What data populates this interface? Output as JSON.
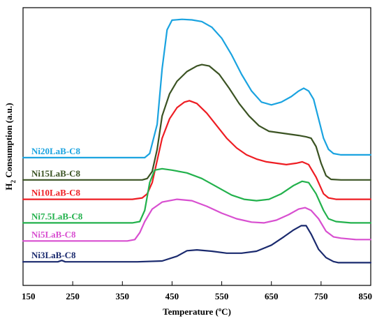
{
  "chart_data": {
    "type": "line",
    "title": "",
    "xlabel": "Temperature (ºC)",
    "ylabel_main": "H",
    "ylabel_sub": "2",
    "ylabel_rest": " Consumption (a.u.)",
    "xlim": [
      150,
      850
    ],
    "xticks": [
      150,
      250,
      350,
      450,
      550,
      650,
      750,
      850
    ],
    "tick_labels": [
      "150",
      "250",
      "350",
      "450",
      "550",
      "650",
      "750",
      "850"
    ],
    "ylim": [
      0,
      100
    ],
    "grid": false,
    "series": [
      {
        "name": "Ni20LaB-C8",
        "color": "#1aa3e0",
        "points": [
          [
            150,
            46
          ],
          [
            250,
            46
          ],
          [
            350,
            46
          ],
          [
            395,
            46
          ],
          [
            405,
            47.5
          ],
          [
            420,
            58
          ],
          [
            430,
            78
          ],
          [
            440,
            92
          ],
          [
            450,
            95.5
          ],
          [
            470,
            95.8
          ],
          [
            490,
            95.6
          ],
          [
            510,
            95
          ],
          [
            530,
            93
          ],
          [
            550,
            89
          ],
          [
            570,
            83
          ],
          [
            590,
            76
          ],
          [
            610,
            70
          ],
          [
            630,
            66
          ],
          [
            650,
            65
          ],
          [
            670,
            66
          ],
          [
            690,
            68
          ],
          [
            705,
            70
          ],
          [
            715,
            71
          ],
          [
            725,
            70
          ],
          [
            735,
            67
          ],
          [
            745,
            60
          ],
          [
            755,
            53
          ],
          [
            765,
            49
          ],
          [
            775,
            47.5
          ],
          [
            790,
            47
          ],
          [
            820,
            47
          ],
          [
            850,
            47
          ]
        ]
      },
      {
        "name": "Ni15LaB-C8",
        "color": "#3b5323",
        "points": [
          [
            150,
            38
          ],
          [
            300,
            38
          ],
          [
            390,
            38
          ],
          [
            400,
            38.5
          ],
          [
            410,
            41
          ],
          [
            420,
            49
          ],
          [
            430,
            61
          ],
          [
            445,
            69
          ],
          [
            460,
            73.5
          ],
          [
            480,
            77
          ],
          [
            500,
            79
          ],
          [
            510,
            79.5
          ],
          [
            525,
            79
          ],
          [
            545,
            76
          ],
          [
            565,
            71
          ],
          [
            585,
            65.5
          ],
          [
            605,
            61
          ],
          [
            625,
            57.5
          ],
          [
            645,
            55.5
          ],
          [
            665,
            55
          ],
          [
            685,
            54.5
          ],
          [
            705,
            54
          ],
          [
            720,
            53.5
          ],
          [
            730,
            53
          ],
          [
            740,
            50
          ],
          [
            750,
            44
          ],
          [
            760,
            39.5
          ],
          [
            770,
            38.2
          ],
          [
            790,
            38
          ],
          [
            820,
            38
          ],
          [
            850,
            38
          ]
        ]
      },
      {
        "name": "Ni10LaB-C8",
        "color": "#ee1d23",
        "points": [
          [
            150,
            31
          ],
          [
            300,
            31
          ],
          [
            370,
            31
          ],
          [
            390,
            31.5
          ],
          [
            400,
            33
          ],
          [
            410,
            37
          ],
          [
            420,
            45
          ],
          [
            430,
            53
          ],
          [
            445,
            60
          ],
          [
            460,
            64
          ],
          [
            475,
            66
          ],
          [
            485,
            66.5
          ],
          [
            500,
            65.5
          ],
          [
            520,
            62
          ],
          [
            540,
            57.5
          ],
          [
            560,
            53
          ],
          [
            580,
            49.5
          ],
          [
            600,
            47
          ],
          [
            620,
            45.5
          ],
          [
            640,
            44.5
          ],
          [
            660,
            44
          ],
          [
            680,
            43.5
          ],
          [
            700,
            44
          ],
          [
            712,
            44.5
          ],
          [
            725,
            43.5
          ],
          [
            740,
            39
          ],
          [
            755,
            33
          ],
          [
            765,
            31.5
          ],
          [
            780,
            31
          ],
          [
            820,
            31
          ],
          [
            850,
            31
          ]
        ]
      },
      {
        "name": "Ni7.5LaB-C8",
        "color": "#22b14c",
        "points": [
          [
            150,
            22.5
          ],
          [
            300,
            22.5
          ],
          [
            370,
            22.5
          ],
          [
            385,
            23
          ],
          [
            395,
            27
          ],
          [
            405,
            37
          ],
          [
            415,
            41.5
          ],
          [
            430,
            42
          ],
          [
            450,
            41.5
          ],
          [
            480,
            40.5
          ],
          [
            510,
            38.5
          ],
          [
            540,
            35.5
          ],
          [
            570,
            32.5
          ],
          [
            595,
            31
          ],
          [
            620,
            30.5
          ],
          [
            645,
            31
          ],
          [
            670,
            33
          ],
          [
            695,
            36
          ],
          [
            712,
            37.5
          ],
          [
            725,
            37
          ],
          [
            740,
            33
          ],
          [
            755,
            27
          ],
          [
            765,
            24
          ],
          [
            780,
            23
          ],
          [
            810,
            22.5
          ],
          [
            850,
            22.5
          ]
        ]
      },
      {
        "name": "Ni5LaB-C8",
        "color": "#d84fd0",
        "points": [
          [
            150,
            16
          ],
          [
            300,
            16
          ],
          [
            360,
            16
          ],
          [
            375,
            16.5
          ],
          [
            385,
            19
          ],
          [
            395,
            23
          ],
          [
            410,
            27.5
          ],
          [
            430,
            30
          ],
          [
            460,
            31
          ],
          [
            490,
            30.5
          ],
          [
            520,
            28.5
          ],
          [
            550,
            26
          ],
          [
            580,
            24
          ],
          [
            610,
            22.8
          ],
          [
            635,
            22.5
          ],
          [
            660,
            23.5
          ],
          [
            685,
            25.5
          ],
          [
            705,
            27.5
          ],
          [
            718,
            28
          ],
          [
            730,
            27
          ],
          [
            745,
            24
          ],
          [
            760,
            19.5
          ],
          [
            775,
            17.5
          ],
          [
            790,
            17
          ],
          [
            820,
            16.5
          ],
          [
            850,
            16.5
          ]
        ]
      },
      {
        "name": "Ni3LaB-C8",
        "color": "#1a2a6e",
        "points": [
          [
            150,
            8.5
          ],
          [
            220,
            8.5
          ],
          [
            228,
            9
          ],
          [
            235,
            8.5
          ],
          [
            300,
            8.5
          ],
          [
            380,
            8.5
          ],
          [
            430,
            8.8
          ],
          [
            460,
            10.5
          ],
          [
            480,
            12.5
          ],
          [
            500,
            12.8
          ],
          [
            530,
            12.3
          ],
          [
            560,
            11.6
          ],
          [
            590,
            11.6
          ],
          [
            620,
            12.3
          ],
          [
            650,
            14.5
          ],
          [
            675,
            17.5
          ],
          [
            695,
            20
          ],
          [
            710,
            21.5
          ],
          [
            720,
            21.5
          ],
          [
            730,
            18.5
          ],
          [
            745,
            13
          ],
          [
            760,
            10
          ],
          [
            775,
            8.6
          ],
          [
            785,
            8.2
          ],
          [
            800,
            8.2
          ],
          [
            850,
            8.2
          ]
        ]
      }
    ]
  }
}
